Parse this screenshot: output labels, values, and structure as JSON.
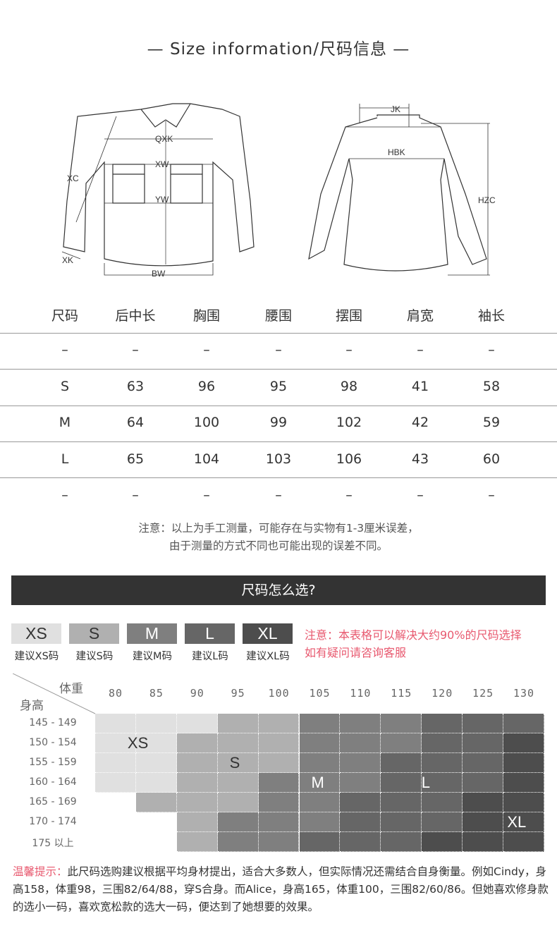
{
  "title": "— Size information/尺码信息 —",
  "diagram": {
    "front_labels": [
      "QXK",
      "XW",
      "YW",
      "XC",
      "XK",
      "BW"
    ],
    "back_labels": [
      "JK",
      "HBK",
      "HZC"
    ]
  },
  "table": {
    "headers": [
      "尺码",
      "后中长",
      "胸围",
      "腰围",
      "摆围",
      "肩宽",
      "袖长"
    ],
    "rows": [
      [
        "–",
        "–",
        "–",
        "–",
        "–",
        "–",
        "–"
      ],
      [
        "S",
        "63",
        "96",
        "95",
        "98",
        "41",
        "58"
      ],
      [
        "M",
        "64",
        "100",
        "99",
        "102",
        "42",
        "59"
      ],
      [
        "L",
        "65",
        "104",
        "103",
        "106",
        "43",
        "60"
      ],
      [
        "–",
        "–",
        "–",
        "–",
        "–",
        "–",
        "–"
      ]
    ]
  },
  "notes": [
    "注意：以上为手工测量，可能存在与实物有1-3厘米误差，",
    "由于测量的方式不同也可能出现的误差不同。"
  ],
  "section_title": "尺码怎么选?",
  "sizes": [
    {
      "code": "XS",
      "label": "建议XS码",
      "color": "#e0e0e0",
      "text_color": "#333333"
    },
    {
      "code": "S",
      "label": "建议S码",
      "color": "#b0b0b0",
      "text_color": "#333333"
    },
    {
      "code": "M",
      "label": "建议M码",
      "color": "#7f7f7f",
      "text_color": "#ffffff"
    },
    {
      "code": "L",
      "label": "建议L码",
      "color": "#666666",
      "text_color": "#ffffff"
    },
    {
      "code": "XL",
      "label": "建议XL码",
      "color": "#4d4d4d",
      "text_color": "#ffffff"
    }
  ],
  "size_note": [
    "注意：本表格可以解决大约90%的尺码选择",
    "如有疑问请咨询客服"
  ],
  "grid": {
    "weight_header": "体重",
    "height_header": "身高",
    "weights": [
      "80",
      "85",
      "90",
      "95",
      "100",
      "105",
      "110",
      "115",
      "120",
      "125",
      "130"
    ],
    "heights": [
      "145 - 149",
      "150 - 154",
      "155 - 159",
      "160 - 164",
      "165 - 169",
      "170 - 174",
      "175 以上"
    ],
    "levels": [
      [
        1,
        1,
        1,
        2,
        2,
        3,
        3,
        3,
        4,
        4,
        4
      ],
      [
        1,
        1,
        2,
        2,
        2,
        3,
        3,
        3,
        4,
        4,
        5
      ],
      [
        1,
        1,
        2,
        2,
        2,
        3,
        3,
        4,
        4,
        4,
        5
      ],
      [
        1,
        1,
        2,
        2,
        3,
        3,
        3,
        4,
        4,
        4,
        5
      ],
      [
        0,
        2,
        2,
        2,
        3,
        3,
        4,
        4,
        4,
        5,
        5
      ],
      [
        0,
        0,
        2,
        3,
        3,
        3,
        4,
        4,
        4,
        5,
        5
      ],
      [
        0,
        0,
        2,
        3,
        3,
        4,
        4,
        4,
        5,
        5,
        5
      ]
    ],
    "region_labels": [
      {
        "text": "XS",
        "row": 1.5,
        "col": 1
      },
      {
        "text": "S",
        "row": 2.5,
        "col": 3.5
      },
      {
        "text": "M",
        "row": 3.5,
        "col": 5.5
      },
      {
        "text": "L",
        "row": 3.5,
        "col": 8.2
      },
      {
        "text": "XL",
        "row": 5.5,
        "col": 10.3
      }
    ]
  },
  "tip": {
    "prefix": "温馨提示：",
    "text": "此尺码选购建议根据平均身材提出，适合大多数人，但实际情况还需结合自身衡量。例如Cindy，身高158，体重98，三围82/64/88，穿S合身。而Alice，身高165，体重100，三围82/60/86。但她喜欢修身款的选小一码，喜欢宽松款的选大一码，便达到了她想要的效果。"
  }
}
